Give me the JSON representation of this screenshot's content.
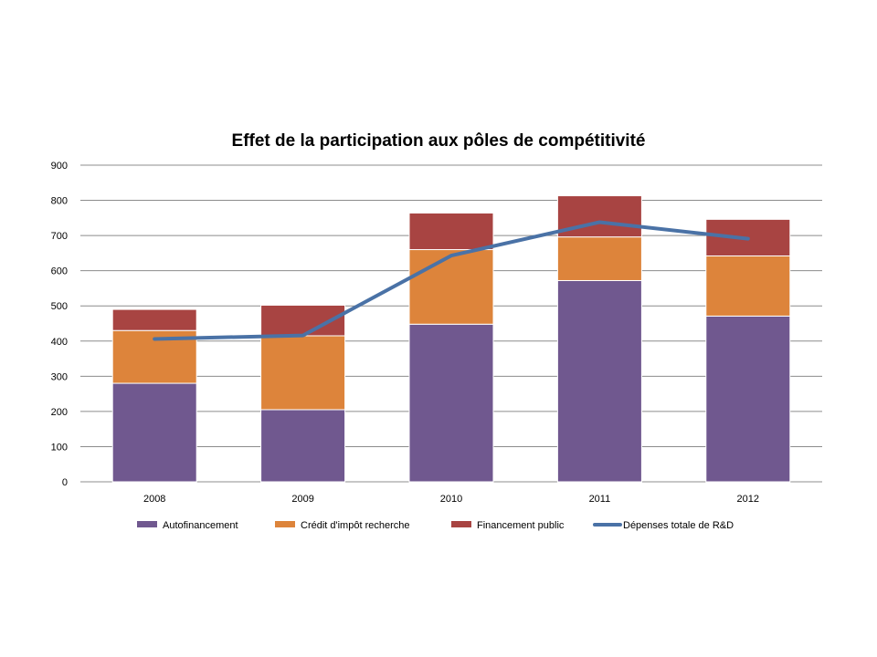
{
  "chart_data": {
    "type": "bar",
    "stacked": true,
    "title": "Effet de la participation aux pôles de compétitivité",
    "xlabel": "",
    "ylabel": "",
    "ylim": [
      0,
      900
    ],
    "yticks": [
      0,
      100,
      200,
      300,
      400,
      500,
      600,
      700,
      800,
      900
    ],
    "yticks_labels": [
      "0",
      "100",
      "200",
      "300",
      "400",
      "500",
      "600",
      "700",
      "800",
      "900"
    ],
    "grid": true,
    "legend_position": "bottom",
    "categories": [
      "2008",
      "2009",
      "2010",
      "2011",
      "2012"
    ],
    "series": [
      {
        "name": "Autofinancement",
        "kind": "bar",
        "color": "#70588f",
        "values": [
          280,
          205,
          448,
          572,
          471
        ]
      },
      {
        "name": "Crédit d'impôt recherche",
        "kind": "bar",
        "color": "#dd843b",
        "values": [
          150,
          210,
          212,
          124,
          171
        ]
      },
      {
        "name": "Financement public",
        "kind": "bar",
        "color": "#a84442",
        "values": [
          60,
          87,
          104,
          117,
          104
        ]
      },
      {
        "name": "Dépenses totale de R&D",
        "kind": "line",
        "color": "#4a72a6",
        "values": [
          406,
          416,
          643,
          738,
          691
        ]
      }
    ]
  }
}
